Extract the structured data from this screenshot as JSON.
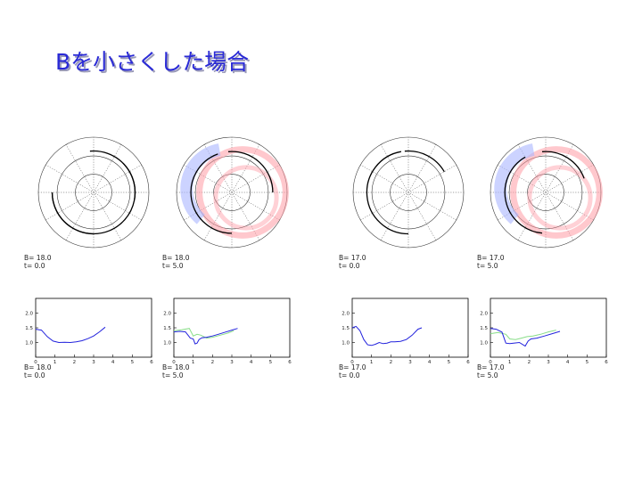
{
  "slide": {
    "title": "Bを小さくした場合"
  },
  "colors": {
    "title": "#2a2ad6",
    "curve": "#000000",
    "line_blue": "#2222dd",
    "line_green": "#88dd88",
    "field_red": "#ff9aa4",
    "field_blue": "#aab6ff"
  },
  "chart_data": [
    {
      "type": "polar",
      "panel": "polar-1",
      "label_lines": [
        "B=  18.0",
        "t=    0.0"
      ],
      "curve_arcs": [
        [
          -30,
          0,
          0.42
        ],
        [
          -180,
          -30,
          0.38
        ],
        [
          -120,
          0,
          0.38
        ]
      ]
    },
    {
      "type": "polar",
      "panel": "polar-2",
      "label_lines": [
        "B=  18.0",
        "t=    5.0"
      ]
    },
    {
      "type": "polar",
      "panel": "polar-3",
      "label_lines": [
        "B=  17.0",
        "t=    0.0"
      ]
    },
    {
      "type": "polar",
      "panel": "polar-4",
      "label_lines": [
        "B=  17.0",
        "t=    5.0"
      ]
    },
    {
      "type": "line",
      "panel": "line-1",
      "label_lines": [
        "B=  18.0",
        "t=    0.0"
      ],
      "xlim": [
        0,
        6
      ],
      "ylim": [
        0.5,
        2.5
      ],
      "xticks": [
        "0",
        "1",
        "2",
        "3",
        "4",
        "5",
        "6"
      ],
      "yticks": [
        "1.0",
        "1.5",
        "2.0"
      ],
      "series": [
        {
          "color": "blue",
          "x": [
            0.0,
            0.3,
            0.6,
            0.9,
            1.2,
            1.5,
            1.8,
            2.1,
            2.4,
            2.7,
            3.0,
            3.3,
            3.6
          ],
          "y": [
            1.45,
            1.42,
            1.2,
            1.05,
            1.0,
            1.01,
            1.0,
            1.02,
            1.06,
            1.13,
            1.22,
            1.36,
            1.52
          ]
        }
      ]
    },
    {
      "type": "line",
      "panel": "line-2",
      "label_lines": [
        "B=  18.0",
        "t=    5.0"
      ],
      "xlim": [
        0,
        6
      ],
      "ylim": [
        0.5,
        2.5
      ],
      "xticks": [
        "0",
        "1",
        "2",
        "3",
        "4",
        "5",
        "6"
      ],
      "yticks": [
        "1.0",
        "1.5",
        "2.0"
      ],
      "series": [
        {
          "color": "blue",
          "x": [
            0.0,
            0.3,
            0.6,
            0.85,
            1.0,
            1.1,
            1.2,
            1.3,
            1.45,
            1.7,
            2.0,
            2.3,
            2.6,
            3.0,
            3.3
          ],
          "y": [
            1.36,
            1.38,
            1.36,
            1.15,
            1.12,
            0.95,
            0.98,
            1.1,
            1.16,
            1.18,
            1.22,
            1.28,
            1.34,
            1.42,
            1.48
          ]
        },
        {
          "color": "green",
          "x": [
            0.0,
            0.4,
            0.8,
            1.0,
            1.2,
            1.4,
            1.7,
            2.0,
            2.4,
            2.8,
            3.1
          ],
          "y": [
            1.4,
            1.43,
            1.48,
            1.22,
            1.28,
            1.25,
            1.15,
            1.18,
            1.25,
            1.32,
            1.4
          ]
        }
      ]
    },
    {
      "type": "line",
      "panel": "line-3",
      "label_lines": [
        "B=  17.0",
        "t=    0.0"
      ],
      "xlim": [
        0,
        6
      ],
      "ylim": [
        0.5,
        2.5
      ],
      "xticks": [
        "0",
        "1",
        "2",
        "3",
        "4",
        "5",
        "6"
      ],
      "yticks": [
        "1.0",
        "1.5",
        "2.0"
      ],
      "series": [
        {
          "color": "blue",
          "x": [
            0.0,
            0.2,
            0.4,
            0.6,
            0.8,
            1.0,
            1.2,
            1.4,
            1.6,
            1.8,
            2.0,
            2.2,
            2.5,
            2.8,
            3.1,
            3.4,
            3.6
          ],
          "y": [
            1.5,
            1.55,
            1.4,
            1.1,
            0.92,
            0.9,
            0.94,
            1.0,
            0.96,
            0.98,
            1.02,
            1.02,
            1.04,
            1.1,
            1.25,
            1.45,
            1.5
          ]
        }
      ]
    },
    {
      "type": "line",
      "panel": "line-4",
      "label_lines": [
        "B=  17.0",
        "t=    5.0"
      ],
      "xlim": [
        0,
        6
      ],
      "ylim": [
        0.5,
        2.5
      ],
      "xticks": [
        "0",
        "1",
        "2",
        "3",
        "4",
        "5",
        "6"
      ],
      "yticks": [
        "1.0",
        "1.5",
        "2.0"
      ],
      "series": [
        {
          "color": "blue",
          "x": [
            0.0,
            0.3,
            0.6,
            0.8,
            1.0,
            1.2,
            1.5,
            1.8,
            1.95,
            2.1,
            2.4,
            2.8,
            3.2,
            3.6
          ],
          "y": [
            1.48,
            1.45,
            1.35,
            0.98,
            0.96,
            0.98,
            1.0,
            0.88,
            1.05,
            1.12,
            1.15,
            1.22,
            1.3,
            1.38
          ]
        },
        {
          "color": "green",
          "x": [
            0.0,
            0.4,
            0.8,
            1.0,
            1.3,
            1.6,
            1.9,
            2.2,
            2.6,
            3.0,
            3.4
          ],
          "y": [
            1.3,
            1.34,
            1.28,
            1.12,
            1.1,
            1.15,
            1.2,
            1.22,
            1.28,
            1.36,
            1.42
          ]
        }
      ]
    }
  ]
}
